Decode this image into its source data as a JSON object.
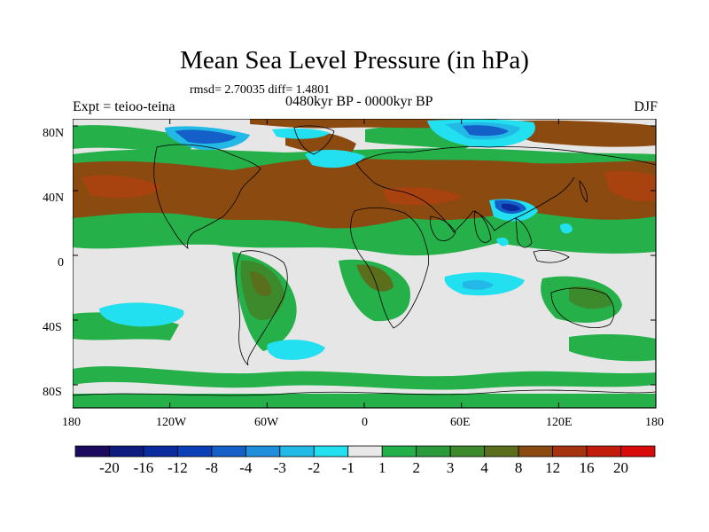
{
  "title": "Mean Sea Level Pressure (in hPa)",
  "stats": "rmsd= 2.70035 diff= 1.4801",
  "period": "0480kyr BP - 0000kyr BP",
  "experiment": "Expt = teioo-teina",
  "season": "DJF",
  "lat_labels": [
    "80N",
    "40N",
    "0",
    "40S",
    "80S"
  ],
  "lon_labels": [
    "180",
    "120W",
    "60W",
    "0",
    "60E",
    "120E",
    "180"
  ],
  "colorbar": {
    "labels": [
      "-20",
      "-16",
      "-12",
      "-8",
      "-4",
      "-3",
      "-2",
      "-1",
      "1",
      "2",
      "3",
      "4",
      "8",
      "12",
      "16",
      "20"
    ],
    "colors": [
      "#1c0a5e",
      "#0f1b7f",
      "#0a2a9e",
      "#0b3fb8",
      "#1560c8",
      "#1f8edb",
      "#22b9e6",
      "#22e0f0",
      "#e8e8e8",
      "#22b04a",
      "#2a9a3c",
      "#3d8a2c",
      "#5a6e1c",
      "#8a4a10",
      "#a53310",
      "#c21d0a",
      "#d80a0a"
    ]
  },
  "map_colors": {
    "neutral": "#e6e6e6",
    "green": "#26b04a",
    "dark_green": "#3d8a2c",
    "olive": "#5a6e1c",
    "brown": "#8a4a10",
    "red_brown": "#a8420e",
    "cyan": "#22e0f0",
    "light_blue": "#22b9e6",
    "blue": "#1560c8",
    "dark_blue": "#0a2a9e"
  }
}
